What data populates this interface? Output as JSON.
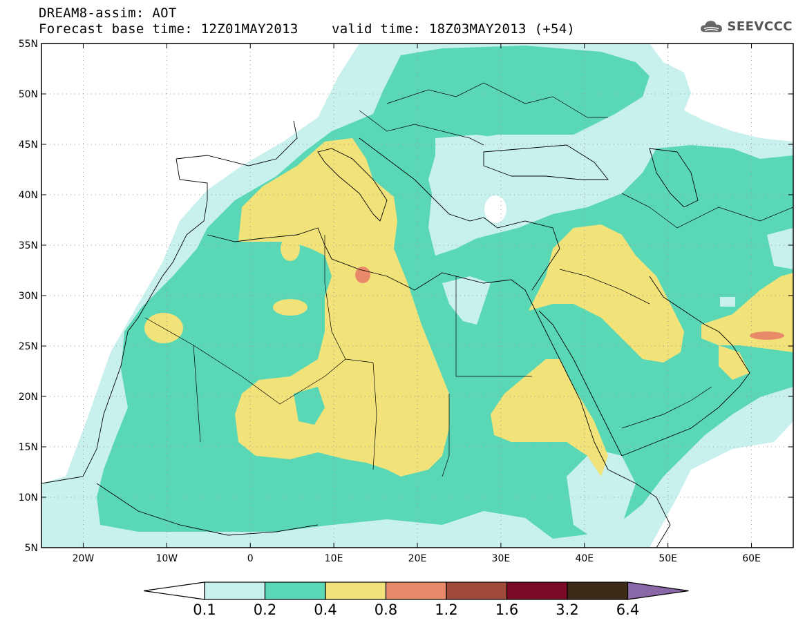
{
  "header": {
    "line1": "DREAM8-assim: AOT",
    "line2": "Forecast base time: 12Z01MAY2013",
    "line3": "valid time: 18Z03MAY2013 (+54)",
    "logo_text": "SEEVCCC",
    "logo_icon": "cloud-icon"
  },
  "axes": {
    "lat_labels": [
      "55N",
      "50N",
      "45N",
      "40N",
      "35N",
      "30N",
      "25N",
      "20N",
      "15N",
      "10N",
      "5N"
    ],
    "lon_labels": [
      "20W",
      "10W",
      "0",
      "10E",
      "20E",
      "30E",
      "40E",
      "50E",
      "60E"
    ]
  },
  "legend": {
    "labels": [
      "0.1",
      "0.2",
      "0.4",
      "0.8",
      "1.2",
      "1.6",
      "3.2",
      "6.4"
    ],
    "colors": [
      "#ffffff",
      "#c8f0ec",
      "#5ad8b5",
      "#f2e27a",
      "#e8896a",
      "#a04a3a",
      "#7a0a26",
      "#3f2a18",
      "#8a68a8"
    ]
  },
  "colors": {
    "c01": "#c8f0ec",
    "c02": "#5ad8b5",
    "c04": "#f2e27a",
    "c08": "#e8896a"
  }
}
